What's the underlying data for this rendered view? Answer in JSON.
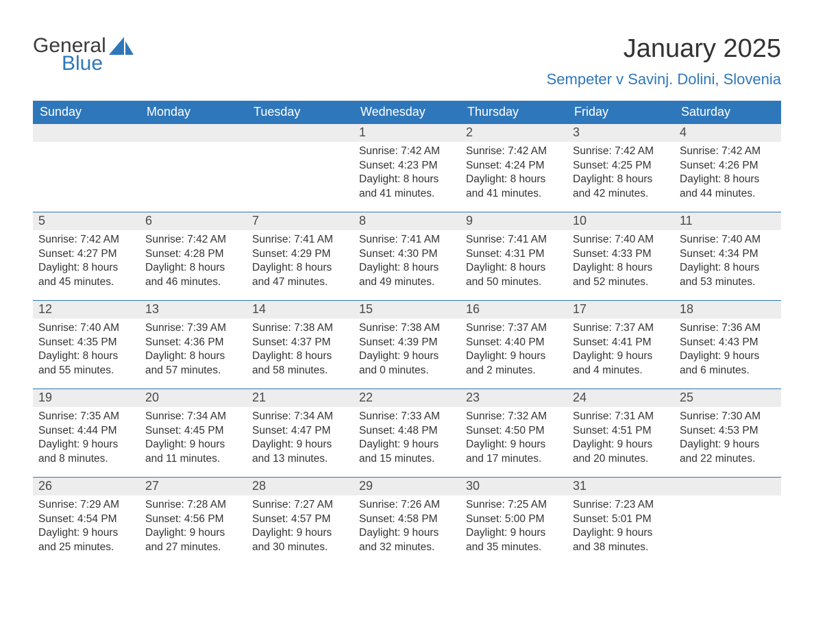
{
  "logo": {
    "general": "General",
    "blue": "Blue"
  },
  "header": {
    "title": "January 2025",
    "location": "Sempeter v Savinj. Dolini, Slovenia"
  },
  "colors": {
    "header_bg": "#2f77bb",
    "header_text": "#ffffff",
    "daynum_bg": "#ededed",
    "body_text": "#333333",
    "accent": "#2f77bb"
  },
  "day_names": [
    "Sunday",
    "Monday",
    "Tuesday",
    "Wednesday",
    "Thursday",
    "Friday",
    "Saturday"
  ],
  "weeks": [
    [
      null,
      null,
      null,
      {
        "n": "1",
        "sr": "7:42 AM",
        "ss": "4:23 PM",
        "dl": "8 hours and 41 minutes."
      },
      {
        "n": "2",
        "sr": "7:42 AM",
        "ss": "4:24 PM",
        "dl": "8 hours and 41 minutes."
      },
      {
        "n": "3",
        "sr": "7:42 AM",
        "ss": "4:25 PM",
        "dl": "8 hours and 42 minutes."
      },
      {
        "n": "4",
        "sr": "7:42 AM",
        "ss": "4:26 PM",
        "dl": "8 hours and 44 minutes."
      }
    ],
    [
      {
        "n": "5",
        "sr": "7:42 AM",
        "ss": "4:27 PM",
        "dl": "8 hours and 45 minutes."
      },
      {
        "n": "6",
        "sr": "7:42 AM",
        "ss": "4:28 PM",
        "dl": "8 hours and 46 minutes."
      },
      {
        "n": "7",
        "sr": "7:41 AM",
        "ss": "4:29 PM",
        "dl": "8 hours and 47 minutes."
      },
      {
        "n": "8",
        "sr": "7:41 AM",
        "ss": "4:30 PM",
        "dl": "8 hours and 49 minutes."
      },
      {
        "n": "9",
        "sr": "7:41 AM",
        "ss": "4:31 PM",
        "dl": "8 hours and 50 minutes."
      },
      {
        "n": "10",
        "sr": "7:40 AM",
        "ss": "4:33 PM",
        "dl": "8 hours and 52 minutes."
      },
      {
        "n": "11",
        "sr": "7:40 AM",
        "ss": "4:34 PM",
        "dl": "8 hours and 53 minutes."
      }
    ],
    [
      {
        "n": "12",
        "sr": "7:40 AM",
        "ss": "4:35 PM",
        "dl": "8 hours and 55 minutes."
      },
      {
        "n": "13",
        "sr": "7:39 AM",
        "ss": "4:36 PM",
        "dl": "8 hours and 57 minutes."
      },
      {
        "n": "14",
        "sr": "7:38 AM",
        "ss": "4:37 PM",
        "dl": "8 hours and 58 minutes."
      },
      {
        "n": "15",
        "sr": "7:38 AM",
        "ss": "4:39 PM",
        "dl": "9 hours and 0 minutes."
      },
      {
        "n": "16",
        "sr": "7:37 AM",
        "ss": "4:40 PM",
        "dl": "9 hours and 2 minutes."
      },
      {
        "n": "17",
        "sr": "7:37 AM",
        "ss": "4:41 PM",
        "dl": "9 hours and 4 minutes."
      },
      {
        "n": "18",
        "sr": "7:36 AM",
        "ss": "4:43 PM",
        "dl": "9 hours and 6 minutes."
      }
    ],
    [
      {
        "n": "19",
        "sr": "7:35 AM",
        "ss": "4:44 PM",
        "dl": "9 hours and 8 minutes."
      },
      {
        "n": "20",
        "sr": "7:34 AM",
        "ss": "4:45 PM",
        "dl": "9 hours and 11 minutes."
      },
      {
        "n": "21",
        "sr": "7:34 AM",
        "ss": "4:47 PM",
        "dl": "9 hours and 13 minutes."
      },
      {
        "n": "22",
        "sr": "7:33 AM",
        "ss": "4:48 PM",
        "dl": "9 hours and 15 minutes."
      },
      {
        "n": "23",
        "sr": "7:32 AM",
        "ss": "4:50 PM",
        "dl": "9 hours and 17 minutes."
      },
      {
        "n": "24",
        "sr": "7:31 AM",
        "ss": "4:51 PM",
        "dl": "9 hours and 20 minutes."
      },
      {
        "n": "25",
        "sr": "7:30 AM",
        "ss": "4:53 PM",
        "dl": "9 hours and 22 minutes."
      }
    ],
    [
      {
        "n": "26",
        "sr": "7:29 AM",
        "ss": "4:54 PM",
        "dl": "9 hours and 25 minutes."
      },
      {
        "n": "27",
        "sr": "7:28 AM",
        "ss": "4:56 PM",
        "dl": "9 hours and 27 minutes."
      },
      {
        "n": "28",
        "sr": "7:27 AM",
        "ss": "4:57 PM",
        "dl": "9 hours and 30 minutes."
      },
      {
        "n": "29",
        "sr": "7:26 AM",
        "ss": "4:58 PM",
        "dl": "9 hours and 32 minutes."
      },
      {
        "n": "30",
        "sr": "7:25 AM",
        "ss": "5:00 PM",
        "dl": "9 hours and 35 minutes."
      },
      {
        "n": "31",
        "sr": "7:23 AM",
        "ss": "5:01 PM",
        "dl": "9 hours and 38 minutes."
      },
      null
    ]
  ],
  "labels": {
    "sunrise": "Sunrise: ",
    "sunset": "Sunset: ",
    "daylight": "Daylight: "
  }
}
